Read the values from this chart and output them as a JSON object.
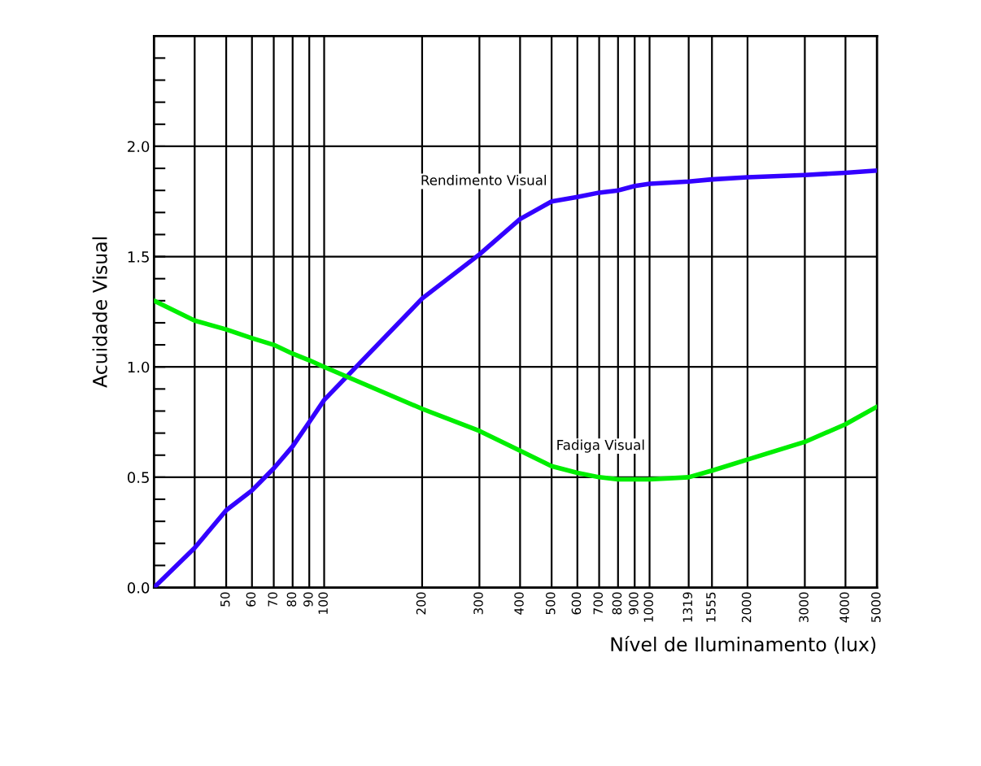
{
  "chart_data": {
    "type": "line",
    "xlabel": "Nível de Iluminamento (lux)",
    "ylabel": "Acuidade Visual",
    "log": "x",
    "xlim": [
      30,
      5000
    ],
    "ylim": [
      0,
      2.5
    ],
    "grid": true,
    "marker": "none",
    "line_style": "solid",
    "xticks": [
      {
        "value": 40,
        "label": null
      },
      50,
      60,
      70,
      80,
      90,
      100,
      200,
      300,
      400,
      500,
      600,
      700,
      800,
      900,
      1000,
      1319,
      1555,
      2000,
      3000,
      4000,
      5000
    ],
    "yticks": [
      {
        "value": 0,
        "label": "0.0"
      },
      {
        "value": 0.1,
        "label": null
      },
      {
        "value": 0.2,
        "label": null
      },
      {
        "value": 0.3,
        "label": null
      },
      {
        "value": 0.4,
        "label": null
      },
      {
        "value": 0.5,
        "label": "0.5"
      },
      {
        "value": 0.6,
        "label": null
      },
      {
        "value": 0.7,
        "label": null
      },
      {
        "value": 0.8,
        "label": null
      },
      {
        "value": 0.9,
        "label": null
      },
      {
        "value": 1.0,
        "label": "1.0"
      },
      {
        "value": 1.1,
        "label": null
      },
      {
        "value": 1.2,
        "label": null
      },
      {
        "value": 1.3,
        "label": null
      },
      {
        "value": 1.4,
        "label": null
      },
      {
        "value": 1.5,
        "label": "1.5"
      },
      {
        "value": 1.6,
        "label": null
      },
      {
        "value": 1.7,
        "label": null
      },
      {
        "value": 1.8,
        "label": null
      },
      {
        "value": 1.9,
        "label": null
      },
      {
        "value": 2.0,
        "label": "2.0"
      },
      {
        "value": 2.1,
        "label": null
      },
      {
        "value": 2.2,
        "label": null
      },
      {
        "value": 2.3,
        "label": null
      },
      {
        "value": 2.4,
        "label": null
      }
    ],
    "x": [
      30,
      40,
      50,
      60,
      70,
      80,
      90,
      100,
      200,
      300,
      400,
      500,
      600,
      700,
      800,
      900,
      1000,
      1319,
      1555,
      2000,
      3000,
      4000,
      5000
    ],
    "series": [
      {
        "name": "Rendimento Visual",
        "color": "#3300ff",
        "values": [
          0,
          0.18,
          0.35,
          0.44,
          0.54,
          0.64,
          0.75,
          0.85,
          1.31,
          1.51,
          1.67,
          1.75,
          1.77,
          1.79,
          1.8,
          1.82,
          1.83,
          1.84,
          1.85,
          1.86,
          1.87,
          1.88,
          1.89
        ]
      },
      {
        "name": "Fadiga Visual",
        "color": "#00ee00",
        "values": [
          1.3,
          1.21,
          1.17,
          1.13,
          1.1,
          1.06,
          1.03,
          1.0,
          0.81,
          0.71,
          0.62,
          0.55,
          0.52,
          0.5,
          0.49,
          0.49,
          0.49,
          0.5,
          0.53,
          0.58,
          0.66,
          0.74,
          0.82
        ]
      }
    ]
  }
}
